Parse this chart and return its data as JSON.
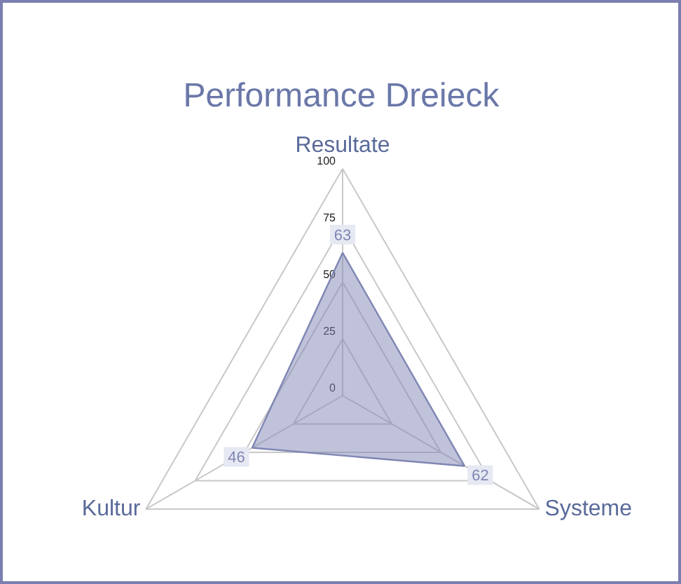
{
  "chart_data": {
    "type": "radar",
    "title": "Performance Dreieck",
    "categories": [
      "Resultate",
      "Systeme",
      "Kultur"
    ],
    "series": [
      {
        "color": "#7f86b4",
        "values": [
          63,
          62,
          46
        ]
      }
    ],
    "ylim": [
      0,
      100
    ],
    "yticks": [
      0,
      25,
      50,
      75,
      100
    ],
    "grid": true,
    "data_labels": true
  }
}
